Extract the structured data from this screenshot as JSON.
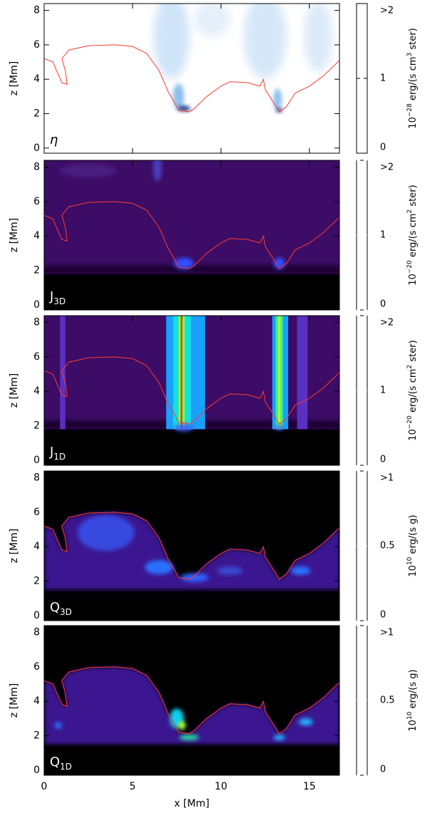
{
  "chart_data": [
    {
      "type": "heatmap",
      "ylabel": "z [Mm]",
      "panel_label": "η",
      "xlim": [
        0,
        16.7
      ],
      "ylim": [
        -0.3,
        8.4
      ],
      "xticks": [
        0,
        5,
        10,
        15
      ],
      "yticks": [
        0,
        2,
        4,
        6,
        8
      ],
      "colorbar": {
        "lim": [
          0,
          2
        ],
        "ticks": [
          0,
          1,
          {
            "value": 2,
            "label": ">2"
          }
        ],
        "label_parts": [
          "10",
          "−28",
          " erg/(s cm",
          "3",
          " ster)"
        ],
        "colormap": [
          "#ffffff",
          "#3d8fe0",
          "#000020"
        ]
      },
      "contour": {
        "color": "#ff3b2f",
        "x": [
          0,
          0.5,
          0.7,
          1,
          1.3,
          1.2,
          1.0,
          1.4,
          2.5,
          4,
          5,
          5.8,
          6.5,
          7,
          7.4,
          7.6,
          8.2,
          8.5,
          9.2,
          10,
          10.5,
          11.5,
          12.2,
          12.4,
          12.5,
          13,
          13.3,
          13.7,
          14.2,
          15,
          15.8,
          16.7
        ],
        "y": [
          5.2,
          5.0,
          4.5,
          3.8,
          3.7,
          4.5,
          5.2,
          5.7,
          5.95,
          6.0,
          5.9,
          5.5,
          4.5,
          3.3,
          2.6,
          2.2,
          2.1,
          2.3,
          3.0,
          3.6,
          3.85,
          3.8,
          3.6,
          4.0,
          3.4,
          2.6,
          2.1,
          2.4,
          3.2,
          3.6,
          4.2,
          5.1
        ]
      }
    },
    {
      "type": "heatmap",
      "ylabel": "z [Mm]",
      "panel_label": "J",
      "panel_label_sub": "3D",
      "xlim": [
        0,
        16.7
      ],
      "ylim": [
        -0.3,
        8.4
      ],
      "xticks": [
        0,
        5,
        10,
        15
      ],
      "yticks": [
        0,
        2,
        4,
        6,
        8
      ],
      "colorbar": {
        "lim": [
          0,
          2
        ],
        "ticks": [
          0,
          1,
          {
            "value": 2,
            "label": ">2"
          }
        ],
        "label_parts": [
          "10",
          "−20",
          " erg/(s cm",
          "2",
          " ster)"
        ],
        "colormap": [
          "#000000",
          "#5a0a8c",
          "#2030ff",
          "#00e0ff",
          "#00ff40",
          "#ffff00",
          "#ff0000"
        ]
      },
      "contour": {
        "color": "#ff3b2f",
        "x": [
          0,
          0.5,
          0.7,
          1,
          1.3,
          1.2,
          1.0,
          1.4,
          2.5,
          4,
          5,
          5.8,
          6.5,
          7,
          7.4,
          7.6,
          8.2,
          8.5,
          9.2,
          10,
          10.5,
          11.5,
          12.2,
          12.4,
          12.5,
          13,
          13.3,
          13.7,
          14.2,
          15,
          15.8,
          16.7
        ],
        "y": [
          5.2,
          5.0,
          4.5,
          3.8,
          3.7,
          4.5,
          5.2,
          5.7,
          5.95,
          6.0,
          5.9,
          5.5,
          4.5,
          3.3,
          2.6,
          2.2,
          2.1,
          2.3,
          3.0,
          3.6,
          3.85,
          3.8,
          3.6,
          4.0,
          3.4,
          2.6,
          2.1,
          2.4,
          3.2,
          3.6,
          4.2,
          5.1
        ]
      }
    },
    {
      "type": "heatmap",
      "ylabel": "z [Mm]",
      "panel_label": "J",
      "panel_label_sub": "1D",
      "xlim": [
        0,
        16.7
      ],
      "ylim": [
        -0.3,
        8.4
      ],
      "xticks": [
        0,
        5,
        10,
        15
      ],
      "yticks": [
        0,
        2,
        4,
        6,
        8
      ],
      "colorbar": {
        "lim": [
          0,
          2
        ],
        "ticks": [
          0,
          1,
          {
            "value": 2,
            "label": ">2"
          }
        ],
        "label_parts": [
          "10",
          "−20",
          " erg/(s cm",
          "2",
          " ster)"
        ],
        "colormap": [
          "#000000",
          "#5a0a8c",
          "#2030ff",
          "#00e0ff",
          "#00ff40",
          "#ffff00",
          "#ff0000"
        ]
      },
      "contour": {
        "color": "#ff3b2f",
        "x": [
          0,
          0.5,
          0.7,
          1,
          1.3,
          1.2,
          1.0,
          1.4,
          2.5,
          4,
          5,
          5.8,
          6.5,
          7,
          7.4,
          7.6,
          8.2,
          8.5,
          9.2,
          10,
          10.5,
          11.5,
          12.2,
          12.4,
          12.5,
          13,
          13.3,
          13.7,
          14.2,
          15,
          15.8,
          16.7
        ],
        "y": [
          5.2,
          5.0,
          4.5,
          3.8,
          3.7,
          4.5,
          5.2,
          5.7,
          5.95,
          6.0,
          5.9,
          5.5,
          4.5,
          3.3,
          2.6,
          2.2,
          2.1,
          2.3,
          3.0,
          3.6,
          3.85,
          3.8,
          3.6,
          4.0,
          3.4,
          2.6,
          2.1,
          2.4,
          3.2,
          3.6,
          4.2,
          5.1
        ]
      }
    },
    {
      "type": "heatmap",
      "ylabel": "z [Mm]",
      "panel_label": "Q",
      "panel_label_sub": "3D",
      "xlim": [
        0,
        16.7
      ],
      "ylim": [
        -0.3,
        8.4
      ],
      "xticks": [
        0,
        5,
        10,
        15
      ],
      "yticks": [
        0,
        2,
        4,
        6,
        8
      ],
      "colorbar": {
        "lim": [
          0,
          1
        ],
        "ticks": [
          0,
          0.5,
          {
            "value": 1,
            "label": ">1"
          }
        ],
        "label_parts": [
          "10",
          "10",
          " erg/(s g)"
        ],
        "colormap": [
          "#000000",
          "#5a0a8c",
          "#2030ff",
          "#00e0ff",
          "#00ff40",
          "#ffff00",
          "#ff0000"
        ]
      },
      "contour": {
        "color": "#ff3b2f",
        "x": [
          0,
          0.5,
          0.7,
          1,
          1.3,
          1.2,
          1.0,
          1.4,
          2.5,
          4,
          5,
          5.8,
          6.5,
          7,
          7.4,
          7.6,
          8.2,
          8.5,
          9.2,
          10,
          10.5,
          11.5,
          12.2,
          12.4,
          12.5,
          13,
          13.3,
          13.7,
          14.2,
          15,
          15.8,
          16.7
        ],
        "y": [
          5.2,
          5.0,
          4.5,
          3.8,
          3.7,
          4.5,
          5.2,
          5.7,
          5.95,
          6.0,
          5.9,
          5.5,
          4.5,
          3.3,
          2.6,
          2.2,
          2.1,
          2.3,
          3.0,
          3.6,
          3.85,
          3.8,
          3.6,
          4.0,
          3.4,
          2.6,
          2.1,
          2.4,
          3.2,
          3.6,
          4.2,
          5.1
        ]
      }
    },
    {
      "type": "heatmap",
      "ylabel": "z [Mm]",
      "panel_label": "Q",
      "panel_label_sub": "1D",
      "xlabel": "x [Mm]",
      "xlim": [
        0,
        16.7
      ],
      "ylim": [
        -0.3,
        8.4
      ],
      "xticks": [
        0,
        5,
        10,
        15
      ],
      "yticks": [
        0,
        2,
        4,
        6,
        8
      ],
      "colorbar": {
        "lim": [
          0,
          1
        ],
        "ticks": [
          0,
          0.5,
          {
            "value": 1,
            "label": ">1"
          }
        ],
        "label_parts": [
          "10",
          "10",
          " erg/(s g)"
        ],
        "colormap": [
          "#000000",
          "#5a0a8c",
          "#2030ff",
          "#00e0ff",
          "#00ff40",
          "#ffff00",
          "#ff0000"
        ]
      },
      "contour": {
        "color": "#ff3b2f",
        "x": [
          0,
          0.5,
          0.7,
          1,
          1.3,
          1.2,
          1.0,
          1.4,
          2.5,
          4,
          5,
          5.8,
          6.5,
          7,
          7.4,
          7.6,
          8.2,
          8.5,
          9.2,
          10,
          10.5,
          11.5,
          12.2,
          12.4,
          12.5,
          13,
          13.3,
          13.7,
          14.2,
          15,
          15.8,
          16.7
        ],
        "y": [
          5.2,
          5.0,
          4.5,
          3.8,
          3.7,
          4.5,
          5.2,
          5.7,
          5.95,
          6.0,
          5.9,
          5.5,
          4.5,
          3.3,
          2.6,
          2.2,
          2.1,
          2.3,
          3.0,
          3.6,
          3.85,
          3.8,
          3.6,
          4.0,
          3.4,
          2.6,
          2.1,
          2.4,
          3.2,
          3.6,
          4.2,
          5.1
        ]
      }
    }
  ]
}
